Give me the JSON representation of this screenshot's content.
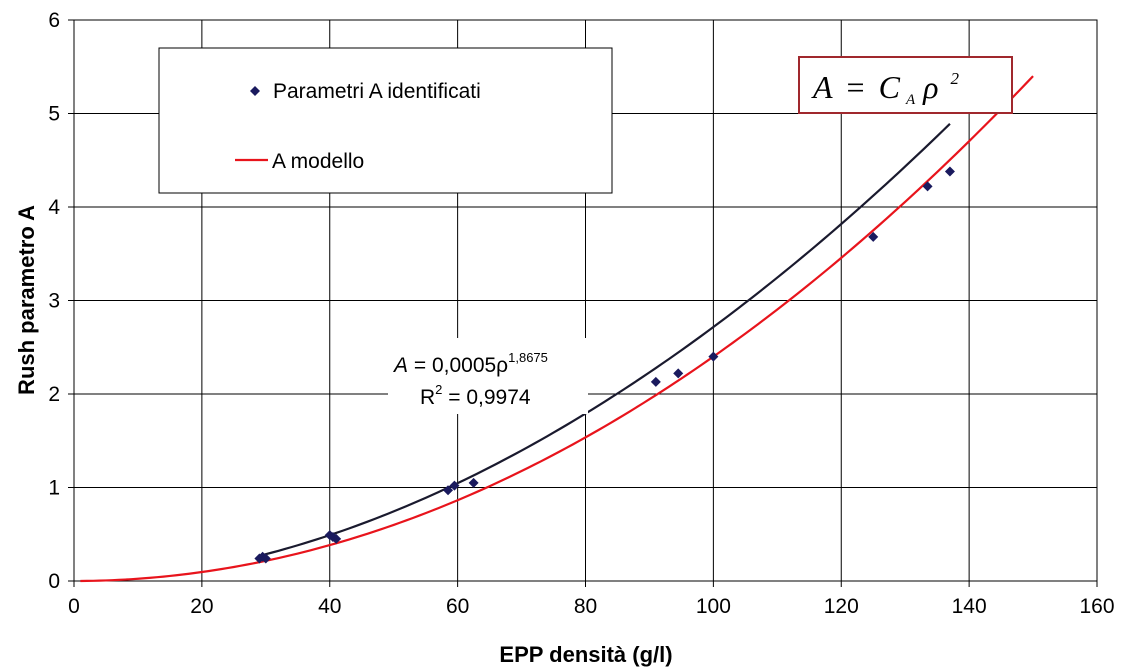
{
  "chart_data": {
    "type": "scatter",
    "xlabel": "EPP densità (g/l)",
    "ylabel": "Rush parametro A",
    "xlim": [
      0,
      160
    ],
    "ylim": [
      0,
      6
    ],
    "xticks": [
      0,
      20,
      40,
      60,
      80,
      100,
      120,
      140,
      160
    ],
    "yticks": [
      0,
      1,
      2,
      3,
      4,
      5,
      6
    ],
    "grid": true,
    "legend_position": "top-left",
    "series": [
      {
        "name": "Parametri A identificati",
        "kind": "scatter",
        "color": "#1a1a5e",
        "points": [
          [
            29.0,
            0.24
          ],
          [
            29.5,
            0.26
          ],
          [
            30.0,
            0.24
          ],
          [
            40.0,
            0.49
          ],
          [
            40.5,
            0.47
          ],
          [
            41.0,
            0.45
          ],
          [
            58.5,
            0.97
          ],
          [
            59.5,
            1.02
          ],
          [
            62.5,
            1.05
          ],
          [
            91.0,
            2.13
          ],
          [
            94.5,
            2.22
          ],
          [
            100.0,
            2.4
          ],
          [
            125.0,
            3.68
          ],
          [
            133.5,
            4.22
          ],
          [
            137.0,
            4.38
          ]
        ]
      },
      {
        "name": "A modello",
        "kind": "line",
        "color": "#e8141c",
        "function": "A = 0.00024 * rho^2",
        "x_range": [
          1,
          150
        ]
      },
      {
        "kind": "trendline",
        "color": "#1a1a2e",
        "function": "A = 0.0005 * rho^1.8675",
        "x_range": [
          29,
          137
        ]
      }
    ],
    "trendline_label": {
      "equation_prefix": "A",
      "equation_body": " = 0,0005ρ",
      "equation_exponent": "1,8675",
      "r2_prefix": "R",
      "r2_exponent": "2",
      "r2_value": " = 0,9974"
    },
    "model_formula": {
      "lhs": "A",
      "eq": "=",
      "coef": "C",
      "subscript": "A",
      "var": "ρ",
      "exponent": "2"
    }
  }
}
